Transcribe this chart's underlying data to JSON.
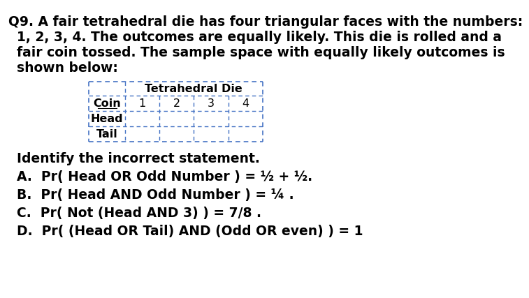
{
  "title_line1": "Q9. A fair tetrahedral die has four triangular faces with the numbers:",
  "title_line2": "1, 2, 3, 4. The outcomes are equally likely. This die is rolled and a",
  "title_line3": "fair coin tossed. The sample space with equally likely outcomes is",
  "title_line4": "shown below:",
  "table_header_main": "Tetrahedral Die",
  "table_col_label": "Coin",
  "table_cols": [
    "1",
    "2",
    "3",
    "4"
  ],
  "table_rows": [
    "Head",
    "Tail"
  ],
  "identify_text": "Identify the incorrect statement.",
  "option_A": "A.  Pr( Head OR Odd Number ) = ½ + ½.",
  "option_B": "B.  Pr( Head AND Odd Number ) = ¼ .",
  "option_C": "C.  Pr( Not (Head AND 3) ) = 7/8 .",
  "option_D": "D.  Pr( (Head OR Tail) AND (Odd OR even) ) = 1",
  "bg_color": "#ffffff",
  "text_color": "#000000",
  "table_border_color": "#4472c4",
  "font_size_main": 13.5,
  "font_size_table": 11.5
}
